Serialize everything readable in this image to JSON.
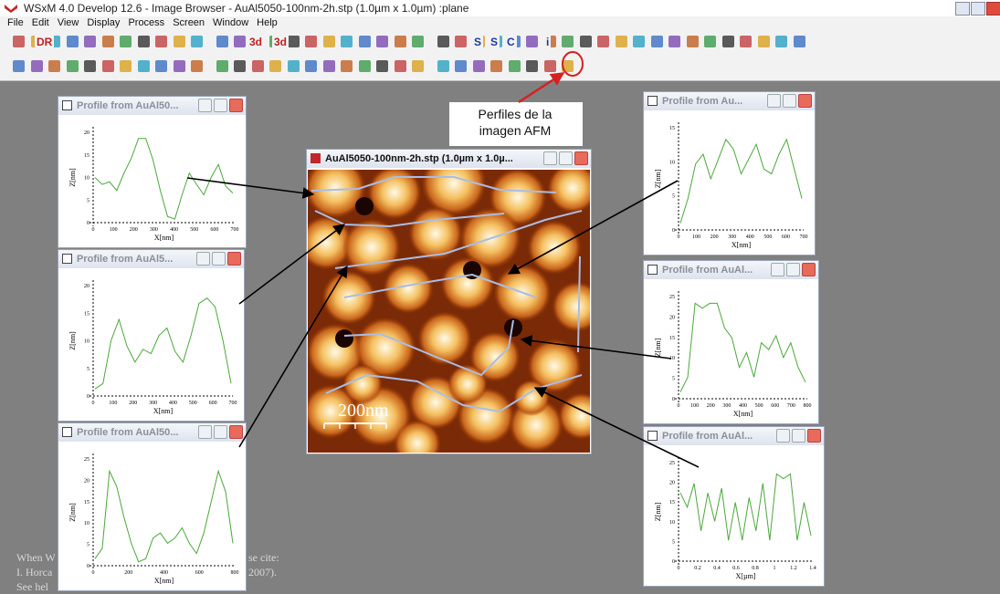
{
  "window": {
    "title": "WSxM 4.0 Develop 12.6 - Image Browser - AuAl5050-100nm-2h.stp (1.0µm x 1.0µm) :plane",
    "menu": [
      "File",
      "Edit",
      "View",
      "Display",
      "Process",
      "Screen",
      "Window",
      "Help"
    ]
  },
  "toolbar": {
    "labels": [
      "DR",
      "3d",
      "3d",
      "S",
      "S",
      "C",
      "i"
    ]
  },
  "annotation": "Perfiles de la imagen AFM",
  "image_window": {
    "title": "AuAl5050-100nm-2h.stp (1.0µm x 1.0µ...",
    "scale_bar": "200nm"
  },
  "profiles": [
    {
      "title": "Profile from AuAl50...",
      "y_label": "Z[nm]",
      "x_label": "X[nm]",
      "yticks": [
        "0",
        "5",
        "10",
        "15",
        "20"
      ],
      "xticks": [
        "0",
        "100",
        "200",
        "300",
        "400",
        "500",
        "600",
        "700"
      ]
    },
    {
      "title": "Profile from AuAl5...",
      "y_label": "Z[nm]",
      "x_label": "X[nm]",
      "yticks": [
        "0",
        "5",
        "10",
        "15",
        "20"
      ],
      "xticks": [
        "0",
        "100",
        "200",
        "300",
        "400",
        "500",
        "600",
        "700"
      ]
    },
    {
      "title": "Profile from AuAl50...",
      "y_label": "Z[nm]",
      "x_label": "X[nm]",
      "yticks": [
        "0",
        "5",
        "10",
        "15",
        "20",
        "25"
      ],
      "xticks": [
        "0",
        "200",
        "400",
        "600",
        "800"
      ]
    },
    {
      "title": "Profile from Au...",
      "y_label": "Z[nm]",
      "x_label": "X[nm]",
      "yticks": [
        "0",
        "5",
        "10",
        "15"
      ],
      "xticks": [
        "0",
        "100",
        "200",
        "300",
        "400",
        "500",
        "600",
        "700"
      ]
    },
    {
      "title": "Profile from AuAl...",
      "y_label": "Z[nm]",
      "x_label": "X[nm]",
      "yticks": [
        "0",
        "5",
        "10",
        "15",
        "20",
        "25"
      ],
      "xticks": [
        "0",
        "100",
        "200",
        "300",
        "400",
        "500",
        "600",
        "700",
        "800"
      ]
    },
    {
      "title": "Profile from AuAl...",
      "y_label": "Z[nm]",
      "x_label": "X[µm]",
      "yticks": [
        "0",
        "5",
        "10",
        "15",
        "20",
        "25"
      ],
      "xticks": [
        "0",
        "0.2",
        "0.4",
        "0.6",
        "0.8",
        "1",
        "1.2",
        "1.4"
      ]
    }
  ],
  "background_text": [
    "When W",
    "se cite:",
    "I. Horca",
    "2007).",
    "See hel"
  ]
}
